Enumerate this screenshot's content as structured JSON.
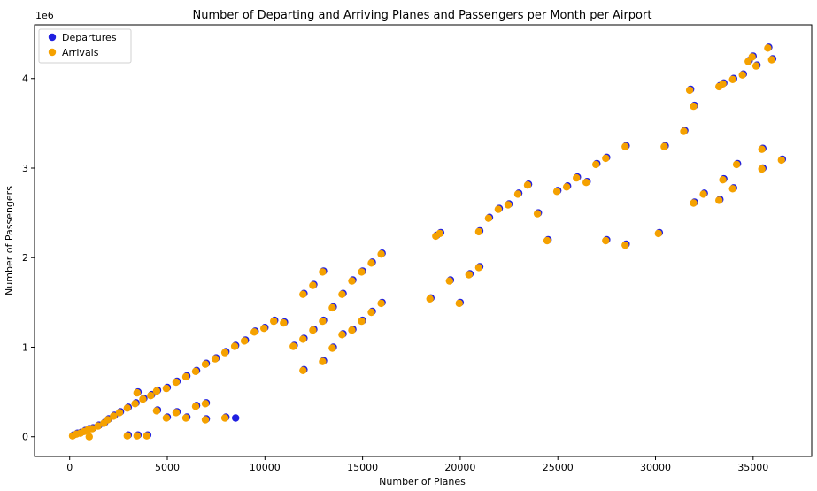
{
  "chart_data": {
    "type": "scatter",
    "title": "Number of Departing and Arriving Planes and Passengers per Month per Airport",
    "xlabel": "Number of Planes",
    "ylabel": "Number of Passengers",
    "y_offset_label": "1e6",
    "xlim": [
      -1800,
      38000
    ],
    "ylim": [
      -0.22,
      4.6
    ],
    "x_ticks": [
      0,
      5000,
      10000,
      15000,
      20000,
      25000,
      30000,
      35000
    ],
    "x_tick_labels": [
      "0",
      "5000",
      "10000",
      "15000",
      "20000",
      "25000",
      "30000",
      "35000"
    ],
    "y_ticks": [
      0,
      1,
      2,
      3,
      4
    ],
    "y_tick_labels": [
      "0",
      "1",
      "2",
      "3",
      "4"
    ],
    "legend_position": "top-left",
    "grid": false,
    "series": [
      {
        "name": "Departures",
        "color": "#1f1fe0",
        "points": [
          [
            200,
            0.02
          ],
          [
            400,
            0.04
          ],
          [
            600,
            0.05
          ],
          [
            800,
            0.07
          ],
          [
            1000,
            0.09
          ],
          [
            1200,
            0.1
          ],
          [
            1500,
            0.13
          ],
          [
            1800,
            0.16
          ],
          [
            2000,
            0.2
          ],
          [
            2300,
            0.24
          ],
          [
            2600,
            0.28
          ],
          [
            3000,
            0.33
          ],
          [
            3400,
            0.38
          ],
          [
            3800,
            0.43
          ],
          [
            3500,
            0.5
          ],
          [
            4200,
            0.47
          ],
          [
            4500,
            0.52
          ],
          [
            5000,
            0.55
          ],
          [
            5500,
            0.62
          ],
          [
            6000,
            0.68
          ],
          [
            6500,
            0.74
          ],
          [
            7000,
            0.82
          ],
          [
            7500,
            0.88
          ],
          [
            8000,
            0.95
          ],
          [
            8500,
            1.02
          ],
          [
            9000,
            1.08
          ],
          [
            9500,
            1.18
          ],
          [
            10000,
            1.22
          ],
          [
            10500,
            1.3
          ],
          [
            11000,
            1.28
          ],
          [
            11500,
            1.02
          ],
          [
            12000,
            1.1
          ],
          [
            12500,
            1.2
          ],
          [
            13000,
            1.3
          ],
          [
            13500,
            1.45
          ],
          [
            14000,
            1.6
          ],
          [
            14500,
            1.75
          ],
          [
            15000,
            1.85
          ],
          [
            15500,
            1.95
          ],
          [
            16000,
            2.05
          ],
          [
            13000,
            0.85
          ],
          [
            13500,
            1.0
          ],
          [
            14000,
            1.15
          ],
          [
            14500,
            1.2
          ],
          [
            15000,
            1.3
          ],
          [
            15500,
            1.4
          ],
          [
            16000,
            1.5
          ],
          [
            12000,
            0.75
          ],
          [
            3000,
            0.02
          ],
          [
            3500,
            0.02
          ],
          [
            4000,
            0.02
          ],
          [
            5000,
            0.22
          ],
          [
            6000,
            0.22
          ],
          [
            7000,
            0.2
          ],
          [
            8000,
            0.22
          ],
          [
            8500,
            0.21
          ],
          [
            6500,
            0.35
          ],
          [
            7000,
            0.38
          ],
          [
            4500,
            0.3
          ],
          [
            5500,
            0.28
          ],
          [
            12000,
            1.6
          ],
          [
            12500,
            1.7
          ],
          [
            13000,
            1.85
          ],
          [
            18500,
            1.55
          ],
          [
            18800,
            2.25
          ],
          [
            19000,
            2.28
          ],
          [
            19500,
            1.75
          ],
          [
            20000,
            1.5
          ],
          [
            20500,
            1.82
          ],
          [
            21000,
            1.9
          ],
          [
            21000,
            2.3
          ],
          [
            21500,
            2.45
          ],
          [
            22000,
            2.55
          ],
          [
            22500,
            2.6
          ],
          [
            23000,
            2.72
          ],
          [
            23500,
            2.82
          ],
          [
            24000,
            2.5
          ],
          [
            24500,
            2.2
          ],
          [
            25000,
            2.75
          ],
          [
            25500,
            2.8
          ],
          [
            26000,
            2.9
          ],
          [
            26500,
            2.85
          ],
          [
            27000,
            3.05
          ],
          [
            27500,
            3.12
          ],
          [
            28500,
            3.25
          ],
          [
            28500,
            2.15
          ],
          [
            27500,
            2.2
          ],
          [
            30200,
            2.28
          ],
          [
            30500,
            3.25
          ],
          [
            31500,
            3.42
          ],
          [
            31800,
            3.88
          ],
          [
            32000,
            3.7
          ],
          [
            32000,
            2.62
          ],
          [
            32500,
            2.72
          ],
          [
            33300,
            2.65
          ],
          [
            33500,
            2.88
          ],
          [
            34000,
            2.78
          ],
          [
            34200,
            3.05
          ],
          [
            34500,
            4.05
          ],
          [
            34800,
            4.2
          ],
          [
            35000,
            4.25
          ],
          [
            35200,
            4.15
          ],
          [
            35500,
            3.22
          ],
          [
            35800,
            4.35
          ],
          [
            35500,
            3.0
          ],
          [
            36000,
            4.22
          ],
          [
            36500,
            3.1
          ],
          [
            33300,
            3.92
          ],
          [
            33500,
            3.95
          ],
          [
            34000,
            4.0
          ]
        ]
      },
      {
        "name": "Arrivals",
        "color": "#f5a100",
        "points": [
          [
            150,
            0.01
          ],
          [
            350,
            0.03
          ],
          [
            550,
            0.04
          ],
          [
            750,
            0.06
          ],
          [
            950,
            0.08
          ],
          [
            1150,
            0.09
          ],
          [
            1450,
            0.12
          ],
          [
            1750,
            0.15
          ],
          [
            1950,
            0.19
          ],
          [
            2250,
            0.23
          ],
          [
            2550,
            0.27
          ],
          [
            2950,
            0.32
          ],
          [
            3350,
            0.37
          ],
          [
            3750,
            0.42
          ],
          [
            3450,
            0.49
          ],
          [
            4150,
            0.46
          ],
          [
            4450,
            0.51
          ],
          [
            4950,
            0.54
          ],
          [
            5450,
            0.61
          ],
          [
            5950,
            0.67
          ],
          [
            6450,
            0.73
          ],
          [
            6950,
            0.81
          ],
          [
            7450,
            0.87
          ],
          [
            7950,
            0.94
          ],
          [
            8450,
            1.01
          ],
          [
            8950,
            1.07
          ],
          [
            9450,
            1.17
          ],
          [
            9950,
            1.21
          ],
          [
            10450,
            1.29
          ],
          [
            10950,
            1.27
          ],
          [
            11450,
            1.01
          ],
          [
            11950,
            1.09
          ],
          [
            12450,
            1.19
          ],
          [
            12950,
            1.29
          ],
          [
            13450,
            1.44
          ],
          [
            13950,
            1.59
          ],
          [
            14450,
            1.74
          ],
          [
            14950,
            1.84
          ],
          [
            15450,
            1.94
          ],
          [
            15950,
            2.04
          ],
          [
            12950,
            0.84
          ],
          [
            13450,
            0.99
          ],
          [
            13950,
            1.14
          ],
          [
            14450,
            1.19
          ],
          [
            14950,
            1.29
          ],
          [
            15450,
            1.39
          ],
          [
            15950,
            1.49
          ],
          [
            11950,
            0.74
          ],
          [
            2950,
            0.01
          ],
          [
            3450,
            0.01
          ],
          [
            3950,
            0.01
          ],
          [
            4950,
            0.21
          ],
          [
            5950,
            0.21
          ],
          [
            6950,
            0.19
          ],
          [
            7950,
            0.21
          ],
          [
            1000,
            0.0
          ],
          [
            6450,
            0.34
          ],
          [
            6950,
            0.37
          ],
          [
            4450,
            0.29
          ],
          [
            5450,
            0.27
          ],
          [
            11950,
            1.59
          ],
          [
            12450,
            1.69
          ],
          [
            12950,
            1.84
          ],
          [
            18450,
            1.54
          ],
          [
            18750,
            2.24
          ],
          [
            18950,
            2.27
          ],
          [
            19450,
            1.74
          ],
          [
            19950,
            1.49
          ],
          [
            20450,
            1.81
          ],
          [
            20950,
            1.89
          ],
          [
            20950,
            2.29
          ],
          [
            21450,
            2.44
          ],
          [
            21950,
            2.54
          ],
          [
            22450,
            2.59
          ],
          [
            22950,
            2.71
          ],
          [
            23450,
            2.81
          ],
          [
            23950,
            2.49
          ],
          [
            24450,
            2.19
          ],
          [
            24950,
            2.74
          ],
          [
            25450,
            2.79
          ],
          [
            25950,
            2.89
          ],
          [
            26450,
            2.84
          ],
          [
            26950,
            3.04
          ],
          [
            27450,
            3.11
          ],
          [
            28450,
            3.24
          ],
          [
            28450,
            2.14
          ],
          [
            27450,
            2.19
          ],
          [
            30150,
            2.27
          ],
          [
            30450,
            3.24
          ],
          [
            31450,
            3.41
          ],
          [
            31750,
            3.87
          ],
          [
            31950,
            3.69
          ],
          [
            31950,
            2.61
          ],
          [
            32450,
            2.71
          ],
          [
            33250,
            2.64
          ],
          [
            33450,
            2.87
          ],
          [
            33950,
            2.77
          ],
          [
            34150,
            3.04
          ],
          [
            34450,
            4.04
          ],
          [
            34750,
            4.19
          ],
          [
            34950,
            4.24
          ],
          [
            35150,
            4.14
          ],
          [
            35450,
            3.21
          ],
          [
            35750,
            4.34
          ],
          [
            35450,
            2.99
          ],
          [
            35950,
            4.21
          ],
          [
            36450,
            3.09
          ],
          [
            33250,
            3.91
          ],
          [
            33450,
            3.94
          ],
          [
            33950,
            3.99
          ]
        ]
      }
    ]
  }
}
